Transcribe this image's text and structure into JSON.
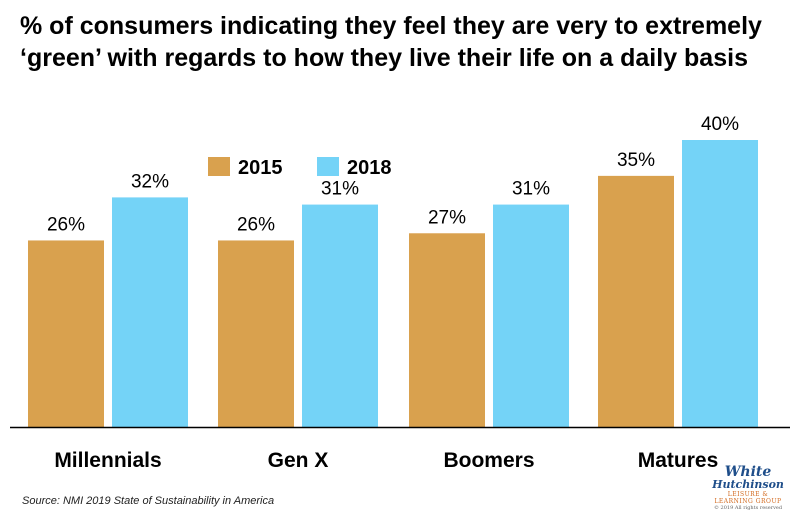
{
  "chart_data": {
    "type": "bar",
    "title": "% of consumers indicating they feel they are very to extremely ‘green’ with regards to how they live their life on a daily basis",
    "categories": [
      "Millennials",
      "Gen X",
      "Boomers",
      "Matures"
    ],
    "series": [
      {
        "name": "2015",
        "values": [
          26,
          26,
          27,
          35
        ],
        "labels": [
          "26%",
          "26%",
          "27%",
          "35%"
        ],
        "color": "#D9A14E"
      },
      {
        "name": "2018",
        "values": [
          32,
          31,
          31,
          40
        ],
        "labels": [
          "32%",
          "31%",
          "31%",
          "40%"
        ],
        "color": "#74D3F7"
      }
    ],
    "ylim": [
      0,
      40
    ],
    "grid": false,
    "legend_position": "top-left"
  },
  "source": "Source: NMI 2019 State of Sustainability in America",
  "logo": {
    "line1": "White",
    "line2": "Hutchinson",
    "line3": "LEISURE & LEARNING GROUP",
    "line4": "© 2019 All rights reserved"
  }
}
